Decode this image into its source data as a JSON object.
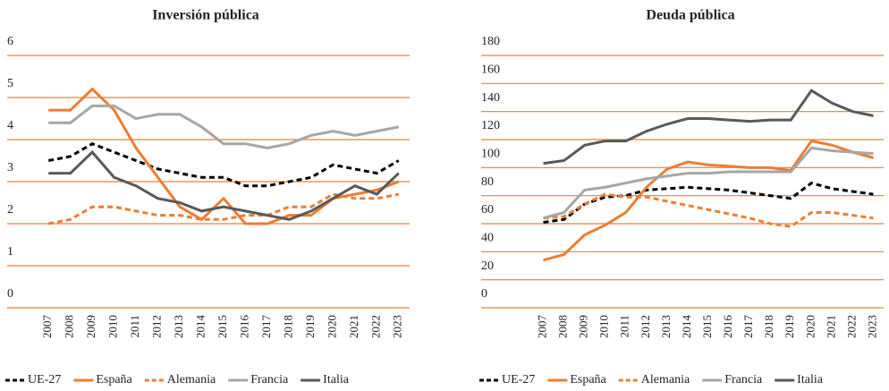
{
  "chart_data": [
    {
      "type": "line",
      "title": "Inversión pública",
      "categories": [
        "2007",
        "2008",
        "2009",
        "2010",
        "2011",
        "2012",
        "2013",
        "2014",
        "2015",
        "2016",
        "2017",
        "2018",
        "2019",
        "2020",
        "2021",
        "2022",
        "2023"
      ],
      "ylim": [
        0,
        6
      ],
      "yticks": [
        0,
        1,
        2,
        3,
        4,
        5,
        6
      ],
      "grid": true,
      "grid_color": "#ed7d31",
      "series": [
        {
          "name": "UE-27",
          "color": "#000000",
          "dashed": true,
          "values": [
            3.5,
            3.6,
            3.9,
            3.7,
            3.5,
            3.3,
            3.2,
            3.1,
            3.1,
            2.9,
            2.9,
            3.0,
            3.1,
            3.4,
            3.3,
            3.2,
            3.5
          ]
        },
        {
          "name": "España",
          "color": "#ed7d31",
          "dashed": false,
          "values": [
            4.7,
            4.7,
            5.2,
            4.7,
            3.8,
            3.1,
            2.4,
            2.1,
            2.6,
            2.0,
            2.0,
            2.2,
            2.2,
            2.6,
            2.7,
            2.8,
            3.0
          ]
        },
        {
          "name": "Alemania",
          "color": "#ed7d31",
          "dashed": true,
          "values": [
            2.0,
            2.1,
            2.4,
            2.4,
            2.3,
            2.2,
            2.2,
            2.1,
            2.1,
            2.2,
            2.2,
            2.4,
            2.4,
            2.7,
            2.6,
            2.6,
            2.7
          ]
        },
        {
          "name": "Francia",
          "color": "#a6a6a6",
          "dashed": false,
          "values": [
            4.4,
            4.4,
            4.8,
            4.8,
            4.5,
            4.6,
            4.6,
            4.3,
            3.9,
            3.9,
            3.8,
            3.9,
            4.1,
            4.2,
            4.1,
            4.2,
            4.3
          ]
        },
        {
          "name": "Italia",
          "color": "#595959",
          "dashed": false,
          "values": [
            3.2,
            3.2,
            3.7,
            3.1,
            2.9,
            2.6,
            2.5,
            2.3,
            2.4,
            2.3,
            2.2,
            2.1,
            2.3,
            2.6,
            2.9,
            2.7,
            3.2
          ]
        }
      ]
    },
    {
      "type": "line",
      "title": "Deuda pública",
      "categories": [
        "2007",
        "2008",
        "2009",
        "2010",
        "2011",
        "2012",
        "2013",
        "2014",
        "2015",
        "2016",
        "2017",
        "2018",
        "2019",
        "2020",
        "2021",
        "2022",
        "2023"
      ],
      "ylim": [
        0,
        180
      ],
      "yticks": [
        0,
        20,
        40,
        60,
        80,
        100,
        120,
        140,
        160,
        180
      ],
      "grid": true,
      "grid_color": "#ed7d31",
      "series": [
        {
          "name": "UE-27",
          "color": "#000000",
          "dashed": true,
          "values": [
            61,
            63,
            74,
            79,
            80,
            84,
            85,
            86,
            85,
            84,
            82,
            80,
            78,
            89,
            85,
            83,
            81
          ]
        },
        {
          "name": "España",
          "color": "#ed7d31",
          "dashed": false,
          "values": [
            34,
            38,
            52,
            59,
            68,
            86,
            99,
            104,
            102,
            101,
            100,
            100,
            98,
            119,
            116,
            111,
            107
          ]
        },
        {
          "name": "Alemania",
          "color": "#ed7d31",
          "dashed": true,
          "values": [
            64,
            65,
            74,
            81,
            79,
            79,
            76,
            73,
            70,
            67,
            64,
            60,
            58,
            68,
            68,
            66,
            64
          ]
        },
        {
          "name": "Francia",
          "color": "#a6a6a6",
          "dashed": false,
          "values": [
            64,
            68,
            84,
            86,
            89,
            92,
            94,
            96,
            96,
            97,
            97,
            97,
            97,
            114,
            112,
            111,
            110
          ]
        },
        {
          "name": "Italia",
          "color": "#595959",
          "dashed": false,
          "values": [
            103,
            105,
            116,
            119,
            119,
            126,
            131,
            135,
            135,
            134,
            133,
            134,
            134,
            155,
            146,
            140,
            137
          ]
        }
      ]
    }
  ]
}
